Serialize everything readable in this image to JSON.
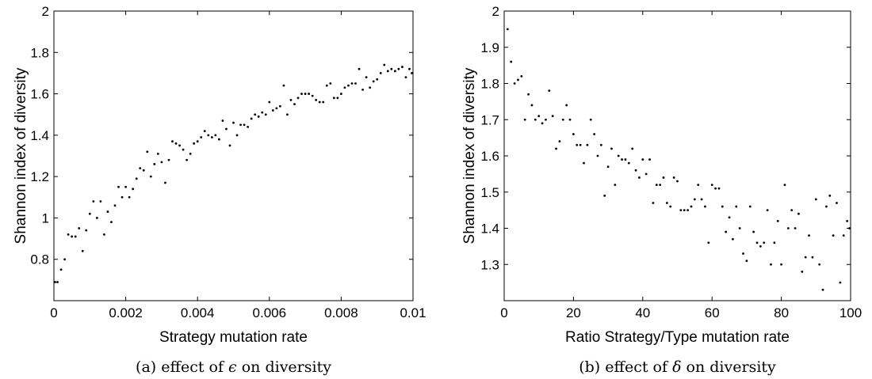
{
  "chart_data": [
    {
      "type": "scatter",
      "title": "",
      "xlabel": "Strategy mutation rate",
      "ylabel": "Shannon index of diversity",
      "caption_prefix": "(a) effect of ",
      "caption_symbol": "ϵ",
      "caption_suffix": " on diversity",
      "xlim": [
        0,
        0.01
      ],
      "ylim": [
        0.6,
        2.0
      ],
      "xticks": [
        0,
        0.002,
        0.004,
        0.006,
        0.008,
        0.01
      ],
      "xtick_labels": [
        "0",
        "0.002",
        "0.004",
        "0.006",
        "0.008",
        "0.01"
      ],
      "yticks": [
        0.8,
        1.0,
        1.2,
        1.4,
        1.6,
        1.8,
        2.0
      ],
      "ytick_labels": [
        "0.8",
        "1",
        "1.2",
        "1.4",
        "1.6",
        "1.8",
        "2"
      ],
      "grid": false,
      "marker_color": "#000000",
      "x": [
        0.0,
        0.0001,
        0.0002,
        0.0003,
        0.0004,
        0.0005,
        0.0006,
        0.0007,
        0.0008,
        0.0009,
        0.001,
        0.0011,
        0.0012,
        0.0013,
        0.0014,
        0.0015,
        0.0016,
        0.0017,
        0.0018,
        0.0019,
        0.002,
        0.0021,
        0.0022,
        0.0023,
        0.0024,
        0.0025,
        0.0026,
        0.0027,
        0.0028,
        0.0029,
        0.003,
        0.0031,
        0.0032,
        0.0033,
        0.0034,
        0.0035,
        0.0036,
        0.0037,
        0.0038,
        0.0039,
        0.004,
        0.0041,
        0.0042,
        0.0043,
        0.0044,
        0.0045,
        0.0046,
        0.0047,
        0.0048,
        0.0049,
        0.005,
        0.0051,
        0.0052,
        0.0053,
        0.0054,
        0.0055,
        0.0056,
        0.0057,
        0.0058,
        0.0059,
        0.006,
        0.0061,
        0.0062,
        0.0063,
        0.0064,
        0.0065,
        0.0066,
        0.0067,
        0.0068,
        0.0069,
        0.007,
        0.0071,
        0.0072,
        0.0073,
        0.0074,
        0.0075,
        0.0076,
        0.0077,
        0.0078,
        0.0079,
        0.008,
        0.0081,
        0.0082,
        0.0083,
        0.0084,
        0.0085,
        0.0086,
        0.0087,
        0.0088,
        0.0089,
        0.009,
        0.0091,
        0.0092,
        0.0093,
        0.0094,
        0.0095,
        0.0096,
        0.0097,
        0.0098,
        0.0099,
        0.01
      ],
      "y": [
        0.69,
        0.69,
        0.75,
        0.8,
        0.92,
        0.91,
        0.91,
        0.95,
        0.84,
        0.94,
        1.02,
        1.08,
        1.0,
        1.08,
        0.92,
        1.03,
        0.98,
        1.06,
        1.15,
        1.1,
        1.15,
        1.1,
        1.14,
        1.19,
        1.24,
        1.23,
        1.32,
        1.2,
        1.26,
        1.31,
        1.27,
        1.17,
        1.28,
        1.37,
        1.36,
        1.35,
        1.33,
        1.28,
        1.31,
        1.36,
        1.37,
        1.39,
        1.42,
        1.4,
        1.39,
        1.4,
        1.38,
        1.47,
        1.43,
        1.35,
        1.46,
        1.4,
        1.45,
        1.45,
        1.44,
        1.48,
        1.5,
        1.49,
        1.51,
        1.5,
        1.56,
        1.52,
        1.53,
        1.54,
        1.64,
        1.5,
        1.57,
        1.55,
        1.58,
        1.6,
        1.6,
        1.6,
        1.59,
        1.57,
        1.56,
        1.56,
        1.64,
        1.65,
        1.58,
        1.58,
        1.6,
        1.63,
        1.64,
        1.65,
        1.65,
        1.72,
        1.62,
        1.68,
        1.63,
        1.66,
        1.67,
        1.7,
        1.74,
        1.71,
        1.72,
        1.71,
        1.72,
        1.73,
        1.68,
        1.72,
        1.7
      ]
    },
    {
      "type": "scatter",
      "title": "",
      "xlabel": "Ratio Strategy/Type mutation rate",
      "ylabel": "Shannon index of diversity",
      "caption_prefix": "(b) effect of ",
      "caption_symbol": "δ",
      "caption_suffix": " on diversity",
      "xlim": [
        0,
        100
      ],
      "ylim": [
        1.2,
        2.0
      ],
      "xticks": [
        0,
        20,
        40,
        60,
        80,
        100
      ],
      "xtick_labels": [
        "0",
        "20",
        "40",
        "60",
        "80",
        "100"
      ],
      "yticks": [
        1.3,
        1.4,
        1.5,
        1.6,
        1.7,
        1.8,
        1.9,
        2.0
      ],
      "ytick_labels": [
        "1.3",
        "1.4",
        "1.5",
        "1.6",
        "1.7",
        "1.8",
        "1.9",
        "2"
      ],
      "grid": false,
      "marker_color": "#000000",
      "x": [
        1,
        2,
        3,
        4,
        5,
        6,
        7,
        8,
        9,
        10,
        11,
        12,
        13,
        14,
        15,
        16,
        17,
        18,
        19,
        20,
        21,
        22,
        23,
        24,
        25,
        26,
        27,
        28,
        29,
        30,
        31,
        32,
        33,
        34,
        35,
        36,
        37,
        38,
        39,
        40,
        41,
        42,
        43,
        44,
        45,
        46,
        47,
        48,
        49,
        50,
        51,
        52,
        53,
        54,
        55,
        56,
        57,
        58,
        59,
        60,
        61,
        62,
        63,
        64,
        65,
        66,
        67,
        68,
        69,
        70,
        71,
        72,
        73,
        74,
        75,
        76,
        77,
        78,
        79,
        80,
        81,
        82,
        83,
        84,
        85,
        86,
        87,
        88,
        89,
        90,
        91,
        92,
        93,
        94,
        95,
        96,
        97,
        98,
        99,
        100
      ],
      "y": [
        1.95,
        1.86,
        1.8,
        1.81,
        1.82,
        1.7,
        1.77,
        1.74,
        1.7,
        1.71,
        1.69,
        1.7,
        1.78,
        1.71,
        1.62,
        1.64,
        1.7,
        1.74,
        1.7,
        1.66,
        1.63,
        1.63,
        1.58,
        1.63,
        1.7,
        1.66,
        1.6,
        1.63,
        1.49,
        1.57,
        1.62,
        1.52,
        1.6,
        1.59,
        1.59,
        1.58,
        1.62,
        1.56,
        1.54,
        1.59,
        1.55,
        1.59,
        1.47,
        1.52,
        1.52,
        1.54,
        1.47,
        1.46,
        1.54,
        1.53,
        1.45,
        1.45,
        1.45,
        1.46,
        1.48,
        1.52,
        1.48,
        1.46,
        1.36,
        1.52,
        1.51,
        1.51,
        1.46,
        1.39,
        1.43,
        1.37,
        1.46,
        1.4,
        1.33,
        1.31,
        1.46,
        1.39,
        1.36,
        1.35,
        1.36,
        1.45,
        1.3,
        1.36,
        1.42,
        1.3,
        1.52,
        1.4,
        1.45,
        1.4,
        1.44,
        1.28,
        1.32,
        1.38,
        1.32,
        1.48,
        1.3,
        1.23,
        1.46,
        1.49,
        1.38,
        1.47,
        1.25,
        1.38,
        1.42,
        1.4
      ]
    }
  ]
}
